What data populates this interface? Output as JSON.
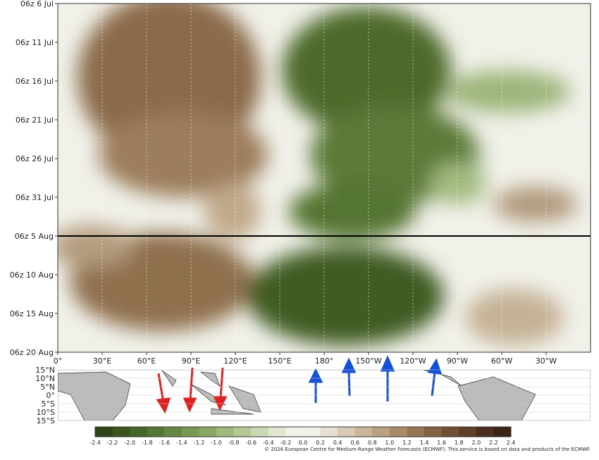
{
  "y_axis": {
    "labels": [
      "06z 6 Jul",
      "06z 11 Jul",
      "06z 16 Jul",
      "06z 21 Jul",
      "06z 26 Jul",
      "06z 31 Jul",
      "06z 5 Aug",
      "06z 10 Aug",
      "06z 15 Aug",
      "06z 20 Aug"
    ]
  },
  "x_axis": {
    "labels": [
      "0°",
      "30°E",
      "60°E",
      "90°E",
      "120°E",
      "150°E",
      "180°",
      "150°W",
      "120°W",
      "90°W",
      "60°W",
      "30°W"
    ]
  },
  "map": {
    "lat_labels": [
      "15°N",
      "10°N",
      "5°N",
      "0°",
      "5°S",
      "10°S",
      "15°S"
    ]
  },
  "colorbar": {
    "labels": [
      "-2.4",
      "-2.2",
      "-2.0",
      "-1.8",
      "-1.6",
      "-1.4",
      "-1.2",
      "-1.0",
      "-0.8",
      "-0.6",
      "-0.4",
      "-0.2",
      "0.0",
      "0.2",
      "0.4",
      "0.6",
      "0.8",
      "1.0",
      "1.2",
      "1.4",
      "1.6",
      "1.8",
      "2.0",
      "2.2",
      "2.4"
    ],
    "colors": [
      "#2e4416",
      "#3a5520",
      "#46652a",
      "#567636",
      "#668744",
      "#799853",
      "#8ca866",
      "#a0b97c",
      "#b5c996",
      "#cad9b3",
      "#e0e8d2",
      "#f2f3ec",
      "#f3f1ec",
      "#e8dfd2",
      "#d9cbb6",
      "#c9b69a",
      "#b9a07f",
      "#a88b68",
      "#967554",
      "#836143",
      "#704f35",
      "#5e3f29",
      "#4b301e",
      "#3c2416"
    ]
  },
  "copyright": "© 2026 European Centre for Medium-Range Weather Forecasts (ECMWF). This service is based on data and products of the ECMWF."
}
